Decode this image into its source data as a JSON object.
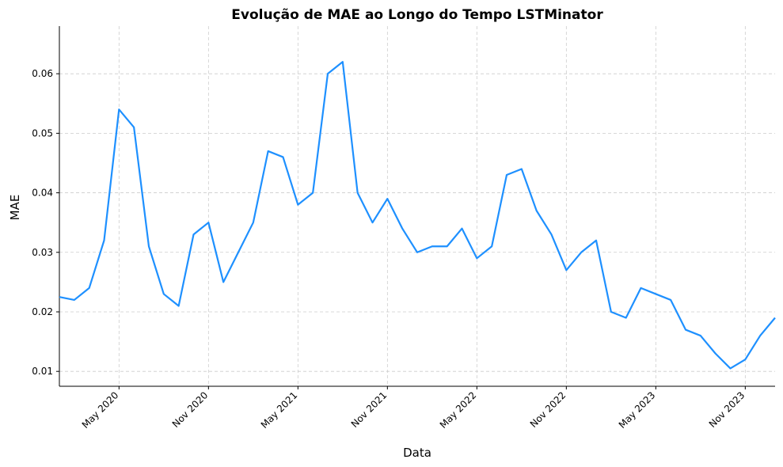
{
  "chart_data": {
    "type": "line",
    "title": "Evolução de MAE ao Longo do Tempo LSTMinator",
    "x_label": "Data",
    "y_label": "MAE",
    "x": [
      "2020-01",
      "2020-02",
      "2020-03",
      "2020-04",
      "2020-05",
      "2020-06",
      "2020-07",
      "2020-08",
      "2020-09",
      "2020-10",
      "2020-11",
      "2020-12",
      "2021-01",
      "2021-02",
      "2021-03",
      "2021-04",
      "2021-05",
      "2021-06",
      "2021-07",
      "2021-08",
      "2021-09",
      "2021-10",
      "2021-11",
      "2021-12",
      "2022-01",
      "2022-02",
      "2022-03",
      "2022-04",
      "2022-05",
      "2022-06",
      "2022-07",
      "2022-08",
      "2022-09",
      "2022-10",
      "2022-11",
      "2022-12",
      "2023-01",
      "2023-02",
      "2023-03",
      "2023-04",
      "2023-05",
      "2023-06",
      "2023-07",
      "2023-08",
      "2023-09",
      "2023-10",
      "2023-11",
      "2023-12",
      "2024-01"
    ],
    "series": [
      {
        "name": "MAE",
        "color": "#1e90ff",
        "values": [
          0.0225,
          0.022,
          0.024,
          0.032,
          0.054,
          0.051,
          0.031,
          0.023,
          0.021,
          0.033,
          0.035,
          0.025,
          0.03,
          0.035,
          0.047,
          0.046,
          0.038,
          0.04,
          0.06,
          0.062,
          0.04,
          0.035,
          0.039,
          0.034,
          0.03,
          0.031,
          0.031,
          0.034,
          0.029,
          0.031,
          0.043,
          0.044,
          0.037,
          0.033,
          0.027,
          0.03,
          0.032,
          0.02,
          0.019,
          0.024,
          0.023,
          0.022,
          0.017,
          0.016,
          0.013,
          0.0105,
          0.012,
          0.016,
          0.019
        ]
      }
    ],
    "xlim": [
      "2020-01",
      "2024-01"
    ],
    "xticks": [
      {
        "value": "2020-05",
        "label": "May 2020"
      },
      {
        "value": "2020-11",
        "label": "Nov 2020"
      },
      {
        "value": "2021-05",
        "label": "May 2021"
      },
      {
        "value": "2021-11",
        "label": "Nov 2021"
      },
      {
        "value": "2022-05",
        "label": "May 2022"
      },
      {
        "value": "2022-11",
        "label": "Nov 2022"
      },
      {
        "value": "2023-05",
        "label": "May 2023"
      },
      {
        "value": "2023-11",
        "label": "Nov 2023"
      }
    ],
    "ylim": [
      0.0075,
      0.068
    ],
    "yticks": [
      0.01,
      0.02,
      0.03,
      0.04,
      0.05,
      0.06
    ],
    "grid": true
  }
}
